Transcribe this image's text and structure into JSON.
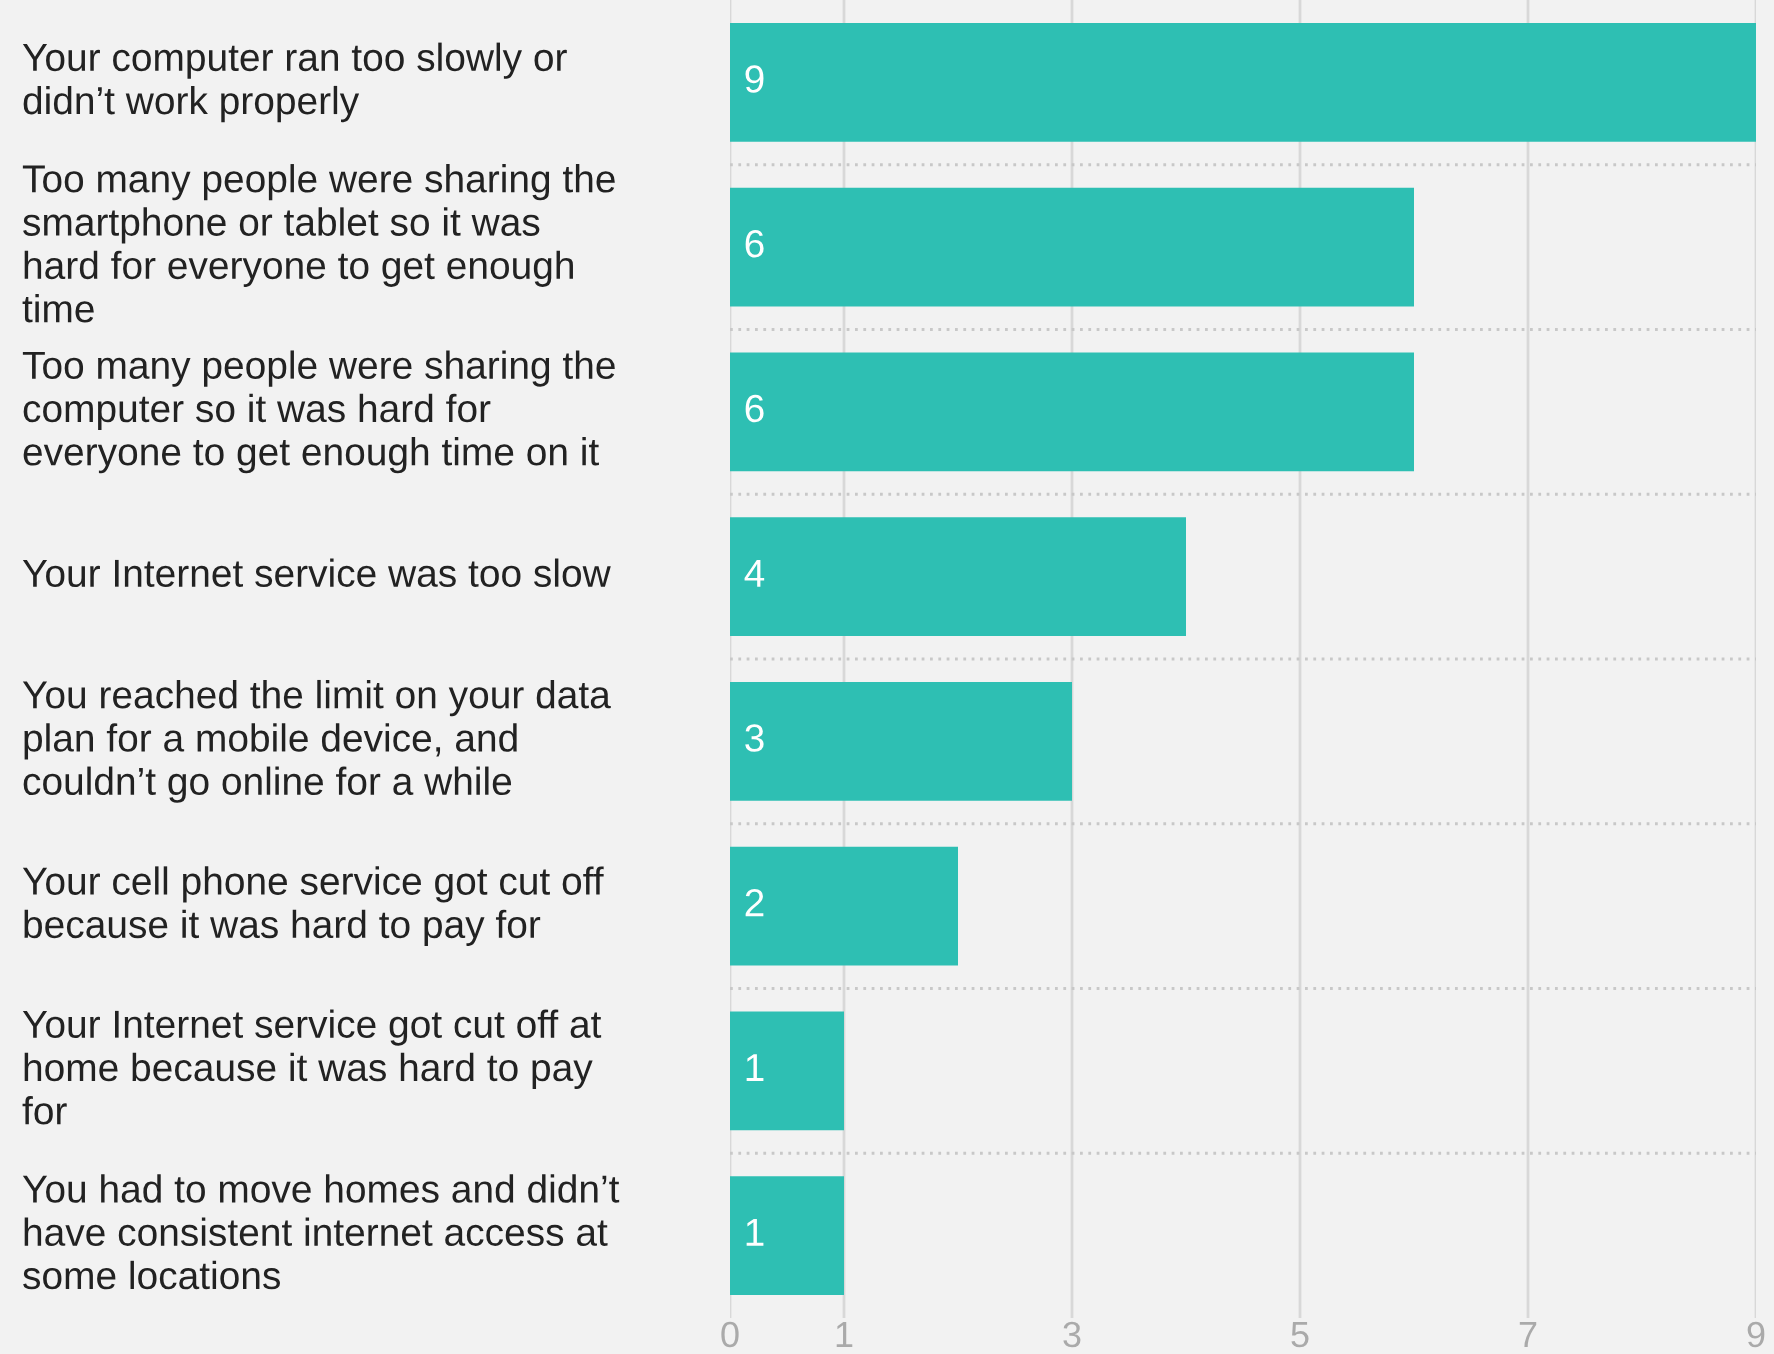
{
  "chart_data": {
    "type": "bar",
    "orientation": "horizontal",
    "categories": [
      "Your computer ran too slowly or\ndidn’t work properly",
      "Too many people were sharing the\nsmartphone or tablet so it was\nhard for everyone to get enough\ntime",
      "Too many people were sharing the\ncomputer so it was hard for\neveryone to get enough time on it",
      "Your Internet service was too slow",
      "You reached the limit on your data\nplan for a mobile device, and\ncouldn’t go online for a while",
      "Your cell phone service got cut off\nbecause it was hard to pay for",
      "Your Internet service got cut off at\nhome because it was hard to pay\nfor",
      "You had to move homes and didn’t\nhave consistent internet access at\nsome locations"
    ],
    "values": [
      9,
      6,
      6,
      4,
      3,
      2,
      1,
      1
    ],
    "color": "#2ebfb3",
    "xlim": [
      0,
      9
    ],
    "xticks": [
      0,
      1,
      3,
      5,
      7,
      9
    ],
    "grid": "x",
    "data_labels": true
  }
}
